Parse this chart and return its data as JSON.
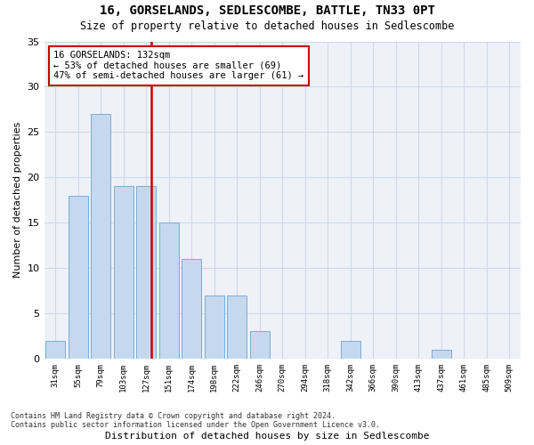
{
  "title": "16, GORSELANDS, SEDLESCOMBE, BATTLE, TN33 0PT",
  "subtitle": "Size of property relative to detached houses in Sedlescombe",
  "xlabel": "Distribution of detached houses by size in Sedlescombe",
  "ylabel": "Number of detached properties",
  "footnote1": "Contains HM Land Registry data © Crown copyright and database right 2024.",
  "footnote2": "Contains public sector information licensed under the Open Government Licence v3.0.",
  "bin_labels": [
    "31sqm",
    "55sqm",
    "79sqm",
    "103sqm",
    "127sqm",
    "151sqm",
    "174sqm",
    "198sqm",
    "222sqm",
    "246sqm",
    "270sqm",
    "294sqm",
    "318sqm",
    "342sqm",
    "366sqm",
    "390sqm",
    "413sqm",
    "437sqm",
    "461sqm",
    "485sqm",
    "509sqm"
  ],
  "bar_heights": [
    2,
    18,
    27,
    19,
    19,
    15,
    11,
    7,
    7,
    3,
    0,
    0,
    0,
    2,
    0,
    0,
    0,
    1,
    0,
    0,
    0
  ],
  "bar_color": "#c5d8ee",
  "bar_edgecolor": "#7aadd4",
  "grid_color": "#d0d8e8",
  "bg_color": "#eef2f8",
  "red_line_x": 4,
  "annotation_title": "16 GORSELANDS: 132sqm",
  "annotation_line1": "← 53% of detached houses are smaller (69)",
  "annotation_line2": "47% of semi-detached houses are larger (61) →",
  "annotation_box_color": "#cc0000",
  "ylim": [
    0,
    35
  ],
  "yticks": [
    0,
    5,
    10,
    15,
    20,
    25,
    30,
    35
  ]
}
